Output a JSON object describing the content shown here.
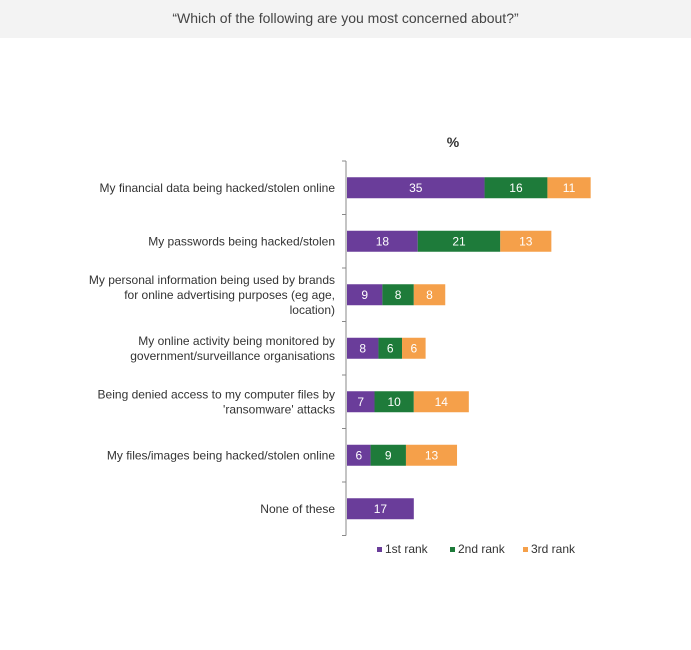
{
  "header": {
    "question": "“Which of the following are you most concerned about?”"
  },
  "chart_data": {
    "type": "bar",
    "orientation": "horizontal",
    "stacked": true,
    "unit_label": "%",
    "categories": [
      [
        "My financial data being hacked/stolen online"
      ],
      [
        "My passwords being hacked/stolen"
      ],
      [
        "My personal information being used by brands",
        "for online advertising purposes (eg age,",
        "location)"
      ],
      [
        "My online activity being monitored by",
        "government/surveillance organisations"
      ],
      [
        "Being denied access to my computer files by",
        "'ransomware' attacks"
      ],
      [
        "My files/images being hacked/stolen online"
      ],
      [
        "None of these"
      ]
    ],
    "series": [
      {
        "name": "1st rank",
        "color": "#6a3d9a",
        "values": [
          35,
          18,
          9,
          8,
          7,
          6,
          17
        ]
      },
      {
        "name": "2nd rank",
        "color": "#1e7b3a",
        "values": [
          16,
          21,
          8,
          6,
          10,
          9,
          null
        ]
      },
      {
        "name": "3rd rank",
        "color": "#f5a04a",
        "values": [
          11,
          13,
          8,
          6,
          14,
          13,
          null
        ]
      }
    ],
    "xlim": [
      0,
      100
    ],
    "grid": false,
    "legend_position": "bottom-right"
  }
}
